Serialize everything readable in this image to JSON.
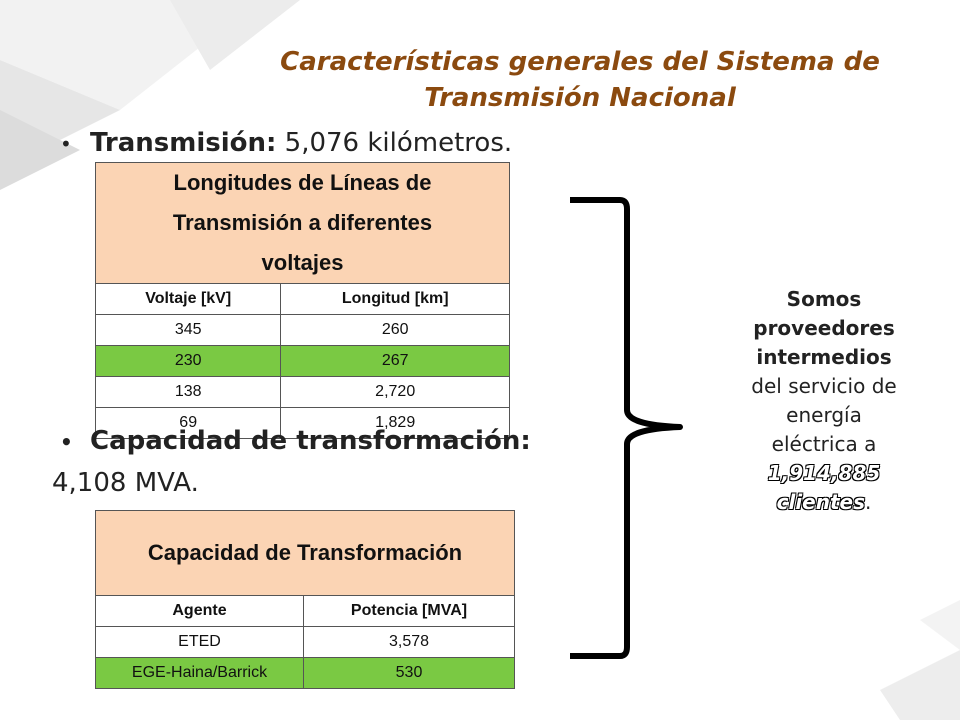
{
  "title": {
    "line1": "Características generales del Sistema de",
    "line2": "Transmisión Nacional"
  },
  "bullet1": {
    "bold": "Transmisión:",
    "rest": " 5,076 kilómetros."
  },
  "bullet2": {
    "bold": "Capacidad de transformación:",
    "cont": "4,108 MVA."
  },
  "table_lines": {
    "header": [
      "Longitudes de Líneas de",
      "Transmisión a diferentes",
      "voltajes"
    ],
    "columns": [
      "Voltaje [kV]",
      "Longitud [km]"
    ],
    "rows": [
      [
        "345",
        "260"
      ],
      [
        "230",
        "267"
      ],
      [
        "138",
        "2,720"
      ],
      [
        "69",
        "1,829"
      ]
    ],
    "highlight_row": 1,
    "highlight_color": "#7ac943"
  },
  "table_transform": {
    "header": "Capacidad de Transformación",
    "columns": [
      "Agente",
      "Potencia [MVA]"
    ],
    "rows": [
      [
        "ETED",
        "3,578"
      ],
      [
        "EGE-Haina/Barrick",
        "530"
      ]
    ],
    "highlight_row": 1
  },
  "side_text": {
    "l1": "Somos",
    "l2": "proveedores",
    "l3": "intermedios",
    "l4": "del servicio de",
    "l5": "energía",
    "l6": "eléctrica a",
    "l7": "1,914,885",
    "l8": "clientes",
    "l8_suffix": "."
  },
  "colors": {
    "title": "#8b4a0f",
    "header_fill": "#fbd4b4",
    "green": "#7ac943"
  }
}
